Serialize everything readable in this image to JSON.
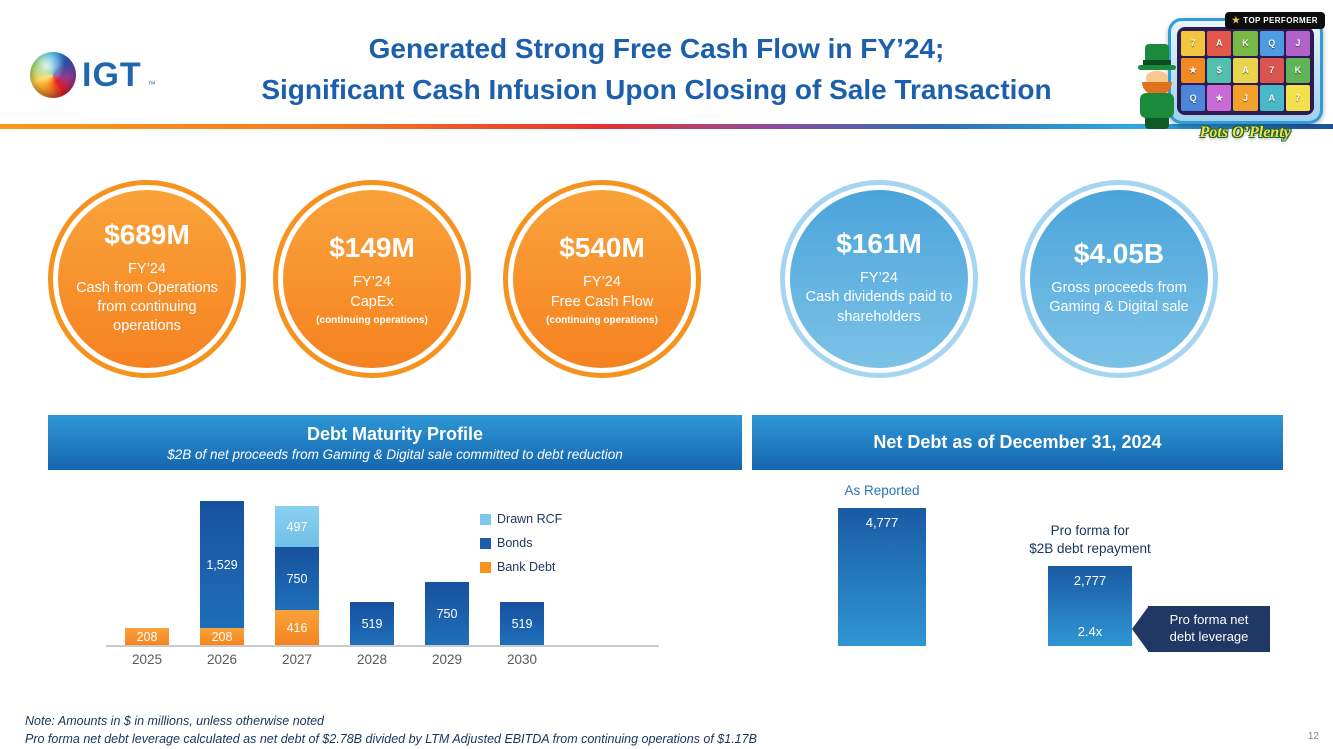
{
  "header": {
    "logo_text": "IGT",
    "logo_tm": "™",
    "title_line1": "Generated Strong Free Cash Flow in FY’24;",
    "title_line2": "Significant Cash Infusion Upon Closing of Sale Transaction",
    "promo": {
      "badge_star": "★",
      "badge_text": "TOP PERFORMER",
      "game_title": "Pots O’Plenty",
      "reel_symbols": [
        "7",
        "A",
        "K",
        "Q",
        "J",
        "★",
        "$",
        "A",
        "7",
        "K",
        "Q",
        "★",
        "J",
        "A",
        "7"
      ]
    }
  },
  "kpis": [
    {
      "theme": "orange",
      "value": "$689M",
      "line1": "FY’24",
      "body": "Cash from Operations from continuing operations",
      "note": ""
    },
    {
      "theme": "orange",
      "value": "$149M",
      "line1": "FY’24",
      "body": "CapEx",
      "note": "(continuing operations)"
    },
    {
      "theme": "orange",
      "value": "$540M",
      "line1": "FY’24",
      "body": "Free Cash Flow",
      "note": "(continuing operations)"
    },
    {
      "theme": "blue",
      "value": "$161M",
      "line1": "FY’24",
      "body": "Cash dividends paid to shareholders",
      "note": ""
    },
    {
      "theme": "blue",
      "value": "$4.05B",
      "line1": "",
      "body": "Gross proceeds from Gaming & Digital sale",
      "note": ""
    }
  ],
  "chart_data": [
    {
      "type": "bar",
      "stacked": true,
      "title": "Debt Maturity Profile",
      "subtitle": "$2B of net proceeds from Gaming & Digital sale committed to debt reduction",
      "categories": [
        "2025",
        "2026",
        "2027",
        "2028",
        "2029",
        "2030"
      ],
      "series": [
        {
          "name": "Bank Debt",
          "color": "#F6921E",
          "values": [
            208,
            208,
            416,
            0,
            0,
            0
          ]
        },
        {
          "name": "Bonds",
          "color": "#1B5FAB",
          "values": [
            0,
            1529,
            750,
            519,
            750,
            519
          ]
        },
        {
          "name": "Drawn RCF",
          "color": "#7DC8EC",
          "values": [
            0,
            0,
            497,
            0,
            0,
            0
          ]
        }
      ],
      "legend": [
        "Drawn RCF",
        "Bonds",
        "Bank Debt"
      ],
      "legend_position": "right",
      "grid": false,
      "ylim": [
        0,
        1800
      ]
    },
    {
      "type": "bar",
      "title": "Net Debt as of December 31, 2024",
      "categories": [
        "As Reported",
        "Pro forma for\n$2B debt repayment"
      ],
      "values": [
        4777,
        2777
      ],
      "value_labels": [
        "4,777",
        "2,777"
      ],
      "bar_annotations": [
        null,
        "2.4x"
      ],
      "callout": "Pro forma net debt leverage",
      "grid": false,
      "ylim": [
        0,
        5200
      ]
    }
  ],
  "footnotes": [
    "Note: Amounts in $ in millions, unless otherwise noted",
    "Pro forma net debt leverage calculated as net debt of $2.78B divided by LTM Adjusted EBITDA from continuing operations of $1.17B"
  ],
  "page_number": "12"
}
